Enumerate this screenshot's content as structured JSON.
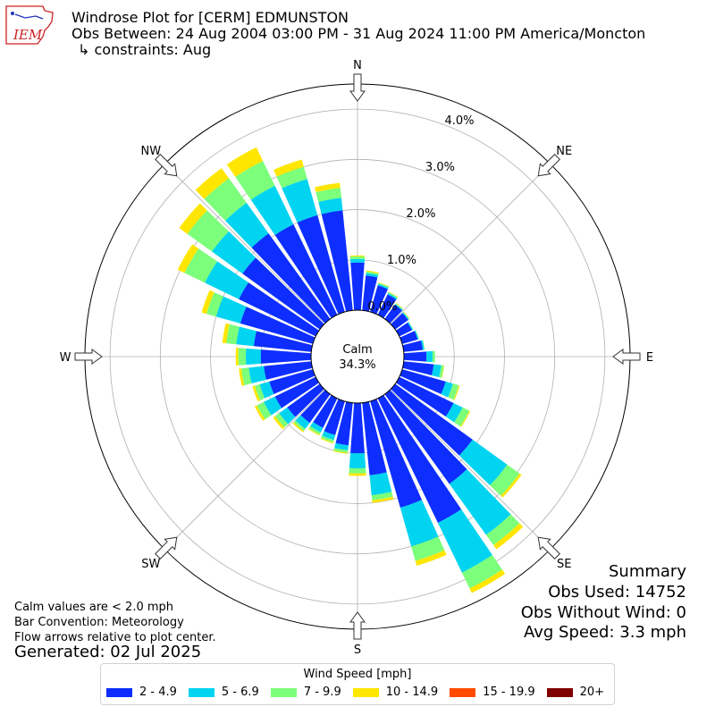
{
  "header": {
    "title": "Windrose Plot for [CERM] EDMUNSTON",
    "subtitle": "Obs Between: 24 Aug 2004 03:00 PM - 31 Aug 2024 11:00 PM America/Moncton",
    "constraints": "↳ constraints: Aug"
  },
  "logo": {
    "text": "IEM"
  },
  "notes": {
    "calm": "Calm values are < 2.0 mph",
    "bar": "Bar Convention: Meteorology",
    "flow": "Flow arrows relative to plot center.",
    "generated": "Generated: 02 Jul 2025"
  },
  "summary": {
    "title": "Summary",
    "obs_used": "Obs Used: 14752",
    "obs_without_wind": "Obs Without Wind: 0",
    "avg_speed": "Avg Speed: 3.3 mph"
  },
  "chart_data": {
    "type": "windrose",
    "calm_label": "Calm",
    "calm_value": "34.3%",
    "directions": [
      "N",
      "NE",
      "E",
      "SE",
      "S",
      "SW",
      "W",
      "NW"
    ],
    "radial_ticks": [
      "0.0%",
      "1.0%",
      "2.0%",
      "3.0%",
      "4.0%"
    ],
    "rmax_percent": 4.5,
    "bins": [
      "2 - 4.9",
      "5 - 6.9",
      "7 - 9.9",
      "10 - 14.9",
      "15 - 19.9",
      "20+"
    ],
    "colors": [
      "#0d2eff",
      "#00d4f0",
      "#7cff7a",
      "#ffe600",
      "#ff4a00",
      "#800000"
    ],
    "sector_width_deg": 10,
    "sectors": [
      {
        "dir": 0,
        "values": [
          0.95,
          0.07,
          0.05,
          0.02,
          0,
          0
        ]
      },
      {
        "dir": 10,
        "values": [
          0.7,
          0.05,
          0.03,
          0.02,
          0,
          0
        ]
      },
      {
        "dir": 20,
        "values": [
          0.55,
          0.03,
          0.02,
          0.01,
          0,
          0
        ]
      },
      {
        "dir": 30,
        "values": [
          0.45,
          0.03,
          0.02,
          0.01,
          0,
          0
        ]
      },
      {
        "dir": 40,
        "values": [
          0.35,
          0.02,
          0.01,
          0.01,
          0,
          0
        ]
      },
      {
        "dir": 50,
        "values": [
          0.32,
          0.02,
          0.01,
          0.01,
          0,
          0
        ]
      },
      {
        "dir": 60,
        "values": [
          0.28,
          0.02,
          0.01,
          0.0,
          0,
          0
        ]
      },
      {
        "dir": 70,
        "values": [
          0.32,
          0.02,
          0.01,
          0.0,
          0,
          0
        ]
      },
      {
        "dir": 80,
        "values": [
          0.38,
          0.03,
          0.01,
          0.0,
          0,
          0
        ]
      },
      {
        "dir": 90,
        "values": [
          0.45,
          0.12,
          0.05,
          0.0,
          0,
          0
        ]
      },
      {
        "dir": 100,
        "values": [
          0.6,
          0.15,
          0.05,
          0.01,
          0,
          0
        ]
      },
      {
        "dir": 110,
        "values": [
          0.9,
          0.15,
          0.12,
          0.02,
          0,
          0
        ]
      },
      {
        "dir": 120,
        "values": [
          1.2,
          0.2,
          0.15,
          0.02,
          0,
          0
        ]
      },
      {
        "dir": 130,
        "values": [
          1.9,
          0.85,
          0.3,
          0.05,
          0,
          0
        ]
      },
      {
        "dir": 140,
        "values": [
          2.2,
          1.25,
          0.25,
          0.1,
          0,
          0
        ]
      },
      {
        "dir": 150,
        "values": [
          2.75,
          1.1,
          0.35,
          0.1,
          0,
          0
        ]
      },
      {
        "dir": 160,
        "values": [
          2.2,
          0.8,
          0.3,
          0.1,
          0,
          0
        ]
      },
      {
        "dir": 170,
        "values": [
          1.45,
          0.4,
          0.1,
          0.05,
          0,
          0
        ]
      },
      {
        "dir": 180,
        "values": [
          1.0,
          0.3,
          0.1,
          0.05,
          0,
          0
        ]
      },
      {
        "dir": 190,
        "values": [
          0.85,
          0.1,
          0.05,
          0.02,
          0,
          0
        ]
      },
      {
        "dir": 200,
        "values": [
          0.7,
          0.1,
          0.05,
          0.02,
          0,
          0
        ]
      },
      {
        "dir": 210,
        "values": [
          0.65,
          0.1,
          0.05,
          0.02,
          0,
          0
        ]
      },
      {
        "dir": 220,
        "values": [
          0.7,
          0.15,
          0.05,
          0.03,
          0,
          0
        ]
      },
      {
        "dir": 230,
        "values": [
          0.8,
          0.2,
          0.1,
          0.05,
          0,
          0
        ]
      },
      {
        "dir": 240,
        "values": [
          0.9,
          0.25,
          0.15,
          0.05,
          0,
          0
        ]
      },
      {
        "dir": 250,
        "values": [
          0.9,
          0.2,
          0.1,
          0.05,
          0,
          0
        ]
      },
      {
        "dir": 260,
        "values": [
          0.95,
          0.3,
          0.15,
          0.05,
          0,
          0
        ]
      },
      {
        "dir": 270,
        "values": [
          1.0,
          0.3,
          0.15,
          0.05,
          0,
          0
        ]
      },
      {
        "dir": 280,
        "values": [
          1.15,
          0.35,
          0.2,
          0.08,
          0,
          0
        ]
      },
      {
        "dir": 290,
        "values": [
          1.5,
          0.5,
          0.2,
          0.1,
          0,
          0
        ]
      },
      {
        "dir": 300,
        "values": [
          1.7,
          0.75,
          0.45,
          0.15,
          0,
          0
        ]
      },
      {
        "dir": 310,
        "values": [
          1.9,
          0.75,
          0.6,
          0.2,
          0,
          0
        ]
      },
      {
        "dir": 320,
        "values": [
          2.1,
          0.75,
          0.6,
          0.25,
          0,
          0
        ]
      },
      {
        "dir": 330,
        "values": [
          2.0,
          0.85,
          0.55,
          0.3,
          0,
          0
        ]
      },
      {
        "dir": 340,
        "values": [
          2.0,
          0.75,
          0.25,
          0.15,
          0,
          0
        ]
      },
      {
        "dir": 350,
        "values": [
          2.0,
          0.25,
          0.2,
          0.1,
          0,
          0
        ]
      }
    ]
  },
  "legend": {
    "title": "Wind Speed [mph]",
    "items": [
      "2 - 4.9",
      "5 - 6.9",
      "7 - 9.9",
      "10 - 14.9",
      "15 - 19.9",
      "20+"
    ]
  }
}
